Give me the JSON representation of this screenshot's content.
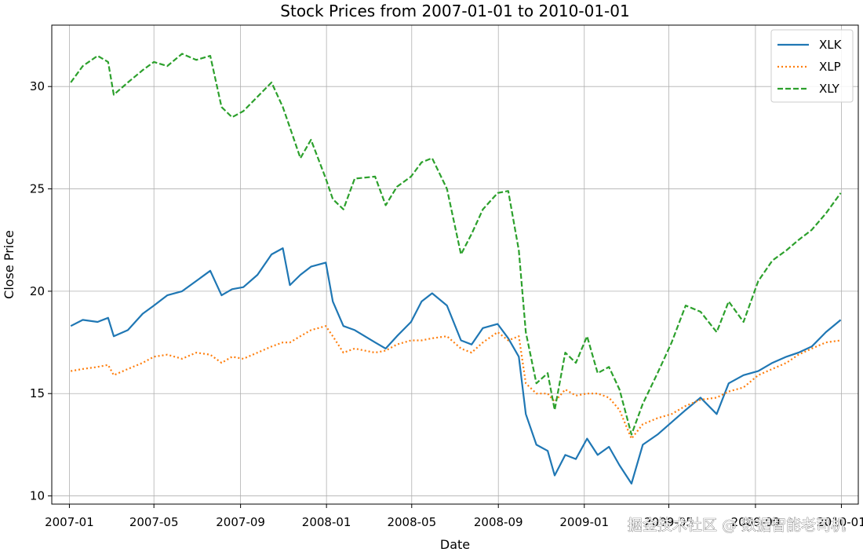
{
  "chart_data": {
    "type": "line",
    "title": "Stock Prices from 2007-01-01 to 2010-01-01",
    "xlabel": "Date",
    "ylabel": "Close Price",
    "ylim": [
      9.6,
      33.0
    ],
    "xlim": [
      "2006-12-07",
      "2010-01-25"
    ],
    "grid": true,
    "legend_placement": "top-right",
    "x_ticks": [
      "2007-01",
      "2007-05",
      "2007-09",
      "2008-01",
      "2008-05",
      "2008-09",
      "2009-01",
      "2009-05",
      "2009-09",
      "2010-01"
    ],
    "y_ticks": [
      10,
      15,
      20,
      25,
      30
    ],
    "series": [
      {
        "name": "XLK",
        "color": "#1f77b4",
        "dash": "solid",
        "x": [
          "2007-01-03",
          "2007-01-20",
          "2007-02-10",
          "2007-02-25",
          "2007-03-05",
          "2007-03-25",
          "2007-04-15",
          "2007-05-01",
          "2007-05-20",
          "2007-06-10",
          "2007-06-30",
          "2007-07-20",
          "2007-08-05",
          "2007-08-20",
          "2007-09-05",
          "2007-09-25",
          "2007-10-15",
          "2007-10-31",
          "2007-11-10",
          "2007-11-25",
          "2007-12-10",
          "2007-12-31",
          "2008-01-10",
          "2008-01-25",
          "2008-02-10",
          "2008-03-10",
          "2008-03-25",
          "2008-04-10",
          "2008-04-30",
          "2008-05-15",
          "2008-05-30",
          "2008-06-20",
          "2008-07-10",
          "2008-07-25",
          "2008-08-10",
          "2008-08-31",
          "2008-09-15",
          "2008-09-30",
          "2008-10-10",
          "2008-10-25",
          "2008-11-10",
          "2008-11-20",
          "2008-12-05",
          "2008-12-20",
          "2009-01-05",
          "2009-01-20",
          "2009-02-05",
          "2009-02-20",
          "2009-03-09",
          "2009-03-25",
          "2009-04-15",
          "2009-05-05",
          "2009-05-25",
          "2009-06-15",
          "2009-07-08",
          "2009-07-25",
          "2009-08-15",
          "2009-09-05",
          "2009-09-25",
          "2009-10-15",
          "2009-11-01",
          "2009-11-20",
          "2009-12-10",
          "2009-12-31"
        ],
        "y": [
          18.3,
          18.6,
          18.5,
          18.7,
          17.8,
          18.1,
          18.9,
          19.3,
          19.8,
          20.0,
          20.5,
          21.0,
          19.8,
          20.1,
          20.2,
          20.8,
          21.8,
          22.1,
          20.3,
          20.8,
          21.2,
          21.4,
          19.5,
          18.3,
          18.1,
          17.5,
          17.2,
          17.8,
          18.5,
          19.5,
          19.9,
          19.3,
          17.6,
          17.4,
          18.2,
          18.4,
          17.7,
          16.8,
          14.0,
          12.5,
          12.2,
          11.0,
          12.0,
          11.8,
          12.8,
          12.0,
          12.4,
          11.5,
          10.6,
          12.5,
          13.0,
          13.6,
          14.2,
          14.8,
          14.0,
          15.5,
          15.9,
          16.1,
          16.5,
          16.8,
          17.0,
          17.3,
          18.0,
          18.6
        ]
      },
      {
        "name": "XLP",
        "color": "#ff7f0e",
        "dash": "dotted",
        "x": [
          "2007-01-03",
          "2007-01-20",
          "2007-02-10",
          "2007-02-25",
          "2007-03-05",
          "2007-03-25",
          "2007-04-15",
          "2007-05-01",
          "2007-05-20",
          "2007-06-10",
          "2007-06-30",
          "2007-07-20",
          "2007-08-05",
          "2007-08-20",
          "2007-09-05",
          "2007-09-25",
          "2007-10-15",
          "2007-10-31",
          "2007-11-10",
          "2007-11-25",
          "2007-12-10",
          "2007-12-31",
          "2008-01-10",
          "2008-01-25",
          "2008-02-10",
          "2008-03-10",
          "2008-03-25",
          "2008-04-10",
          "2008-04-30",
          "2008-05-15",
          "2008-05-30",
          "2008-06-20",
          "2008-07-10",
          "2008-07-25",
          "2008-08-10",
          "2008-08-31",
          "2008-09-15",
          "2008-09-30",
          "2008-10-10",
          "2008-10-25",
          "2008-11-10",
          "2008-11-20",
          "2008-12-05",
          "2008-12-20",
          "2009-01-05",
          "2009-01-20",
          "2009-02-05",
          "2009-02-20",
          "2009-03-09",
          "2009-03-25",
          "2009-04-15",
          "2009-05-05",
          "2009-05-25",
          "2009-06-15",
          "2009-07-08",
          "2009-07-25",
          "2009-08-15",
          "2009-09-05",
          "2009-09-25",
          "2009-10-15",
          "2009-11-01",
          "2009-11-20",
          "2009-12-10",
          "2009-12-31"
        ],
        "y": [
          16.1,
          16.2,
          16.3,
          16.4,
          15.9,
          16.2,
          16.5,
          16.8,
          16.9,
          16.7,
          17.0,
          16.9,
          16.5,
          16.8,
          16.7,
          17.0,
          17.3,
          17.5,
          17.5,
          17.8,
          18.1,
          18.3,
          17.8,
          17.0,
          17.2,
          17.0,
          17.1,
          17.4,
          17.6,
          17.6,
          17.7,
          17.8,
          17.2,
          17.0,
          17.5,
          18.0,
          17.6,
          17.8,
          15.5,
          15.0,
          15.0,
          14.6,
          15.2,
          14.9,
          15.0,
          15.0,
          14.8,
          14.2,
          12.8,
          13.5,
          13.8,
          14.0,
          14.4,
          14.7,
          14.8,
          15.1,
          15.3,
          15.9,
          16.2,
          16.5,
          16.9,
          17.2,
          17.5,
          17.6
        ]
      },
      {
        "name": "XLY",
        "color": "#2ca02c",
        "dash": "dashed",
        "x": [
          "2007-01-03",
          "2007-01-20",
          "2007-02-10",
          "2007-02-25",
          "2007-03-05",
          "2007-03-25",
          "2007-04-15",
          "2007-05-01",
          "2007-05-20",
          "2007-06-10",
          "2007-06-30",
          "2007-07-20",
          "2007-08-05",
          "2007-08-20",
          "2007-09-05",
          "2007-09-25",
          "2007-10-15",
          "2007-10-31",
          "2007-11-10",
          "2007-11-25",
          "2007-12-10",
          "2007-12-31",
          "2008-01-10",
          "2008-01-25",
          "2008-02-10",
          "2008-03-10",
          "2008-03-25",
          "2008-04-10",
          "2008-04-30",
          "2008-05-15",
          "2008-05-30",
          "2008-06-20",
          "2008-07-10",
          "2008-07-25",
          "2008-08-10",
          "2008-08-31",
          "2008-09-15",
          "2008-09-30",
          "2008-10-10",
          "2008-10-25",
          "2008-11-10",
          "2008-11-20",
          "2008-12-05",
          "2008-12-20",
          "2009-01-05",
          "2009-01-20",
          "2009-02-05",
          "2009-02-20",
          "2009-03-09",
          "2009-03-25",
          "2009-04-15",
          "2009-05-05",
          "2009-05-25",
          "2009-06-15",
          "2009-07-08",
          "2009-07-25",
          "2009-08-15",
          "2009-09-05",
          "2009-09-25",
          "2009-10-15",
          "2009-11-01",
          "2009-11-20",
          "2009-12-10",
          "2009-12-31"
        ],
        "y": [
          30.2,
          31.0,
          31.5,
          31.2,
          29.6,
          30.2,
          30.8,
          31.2,
          31.0,
          31.6,
          31.3,
          31.5,
          29.0,
          28.5,
          28.8,
          29.5,
          30.2,
          29.0,
          28.0,
          26.5,
          27.4,
          25.5,
          24.5,
          24.0,
          25.5,
          25.6,
          24.2,
          25.1,
          25.6,
          26.3,
          26.5,
          25.0,
          21.8,
          22.8,
          24.0,
          24.8,
          24.9,
          22.0,
          18.0,
          15.5,
          16.0,
          14.2,
          17.0,
          16.5,
          17.8,
          16.0,
          16.3,
          15.2,
          13.0,
          14.5,
          16.0,
          17.5,
          19.3,
          19.0,
          18.0,
          19.5,
          18.5,
          20.5,
          21.5,
          22.0,
          22.5,
          23.0,
          23.8,
          24.8
        ]
      }
    ]
  },
  "watermark": "掘金技术社区 @ 数据智能老司机"
}
